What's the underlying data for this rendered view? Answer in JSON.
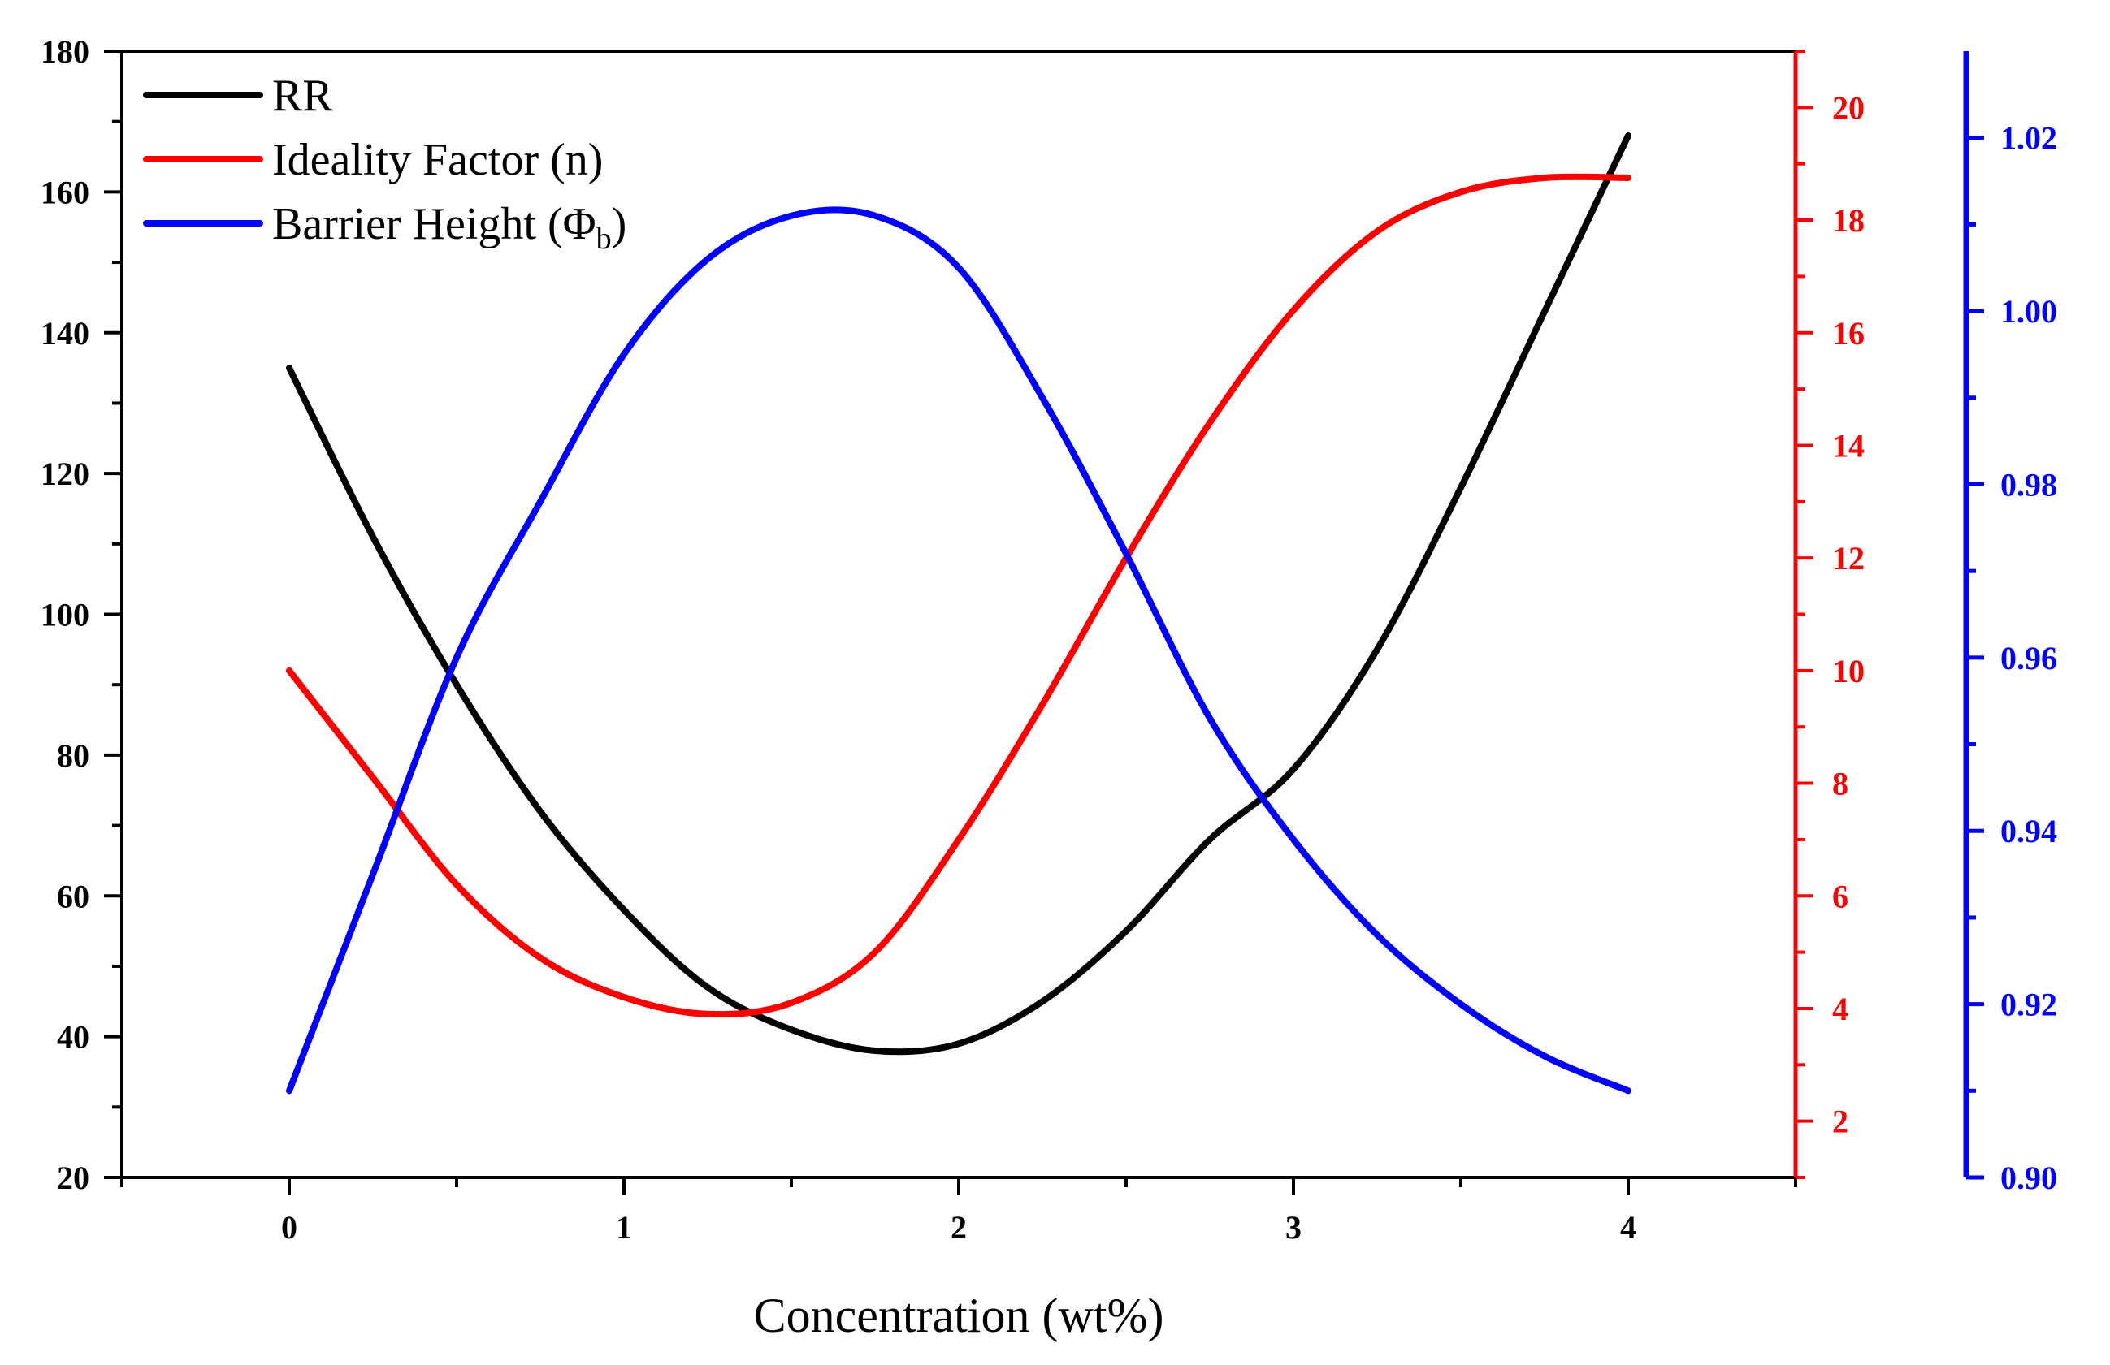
{
  "chart_data": {
    "type": "line",
    "title": "",
    "xlabel": "Concentration (wt%)",
    "xlim": [
      -0.5,
      4.5
    ],
    "x_ticks": [
      0,
      1,
      2,
      3,
      4
    ],
    "x_tick_labels": [
      "0",
      "1",
      "2",
      "3",
      "4"
    ],
    "axes": {
      "left": {
        "ylim": [
          20,
          180
        ],
        "ticks": [
          20,
          40,
          60,
          80,
          100,
          120,
          140,
          160,
          180
        ],
        "tick_labels": [
          "20",
          "40",
          "60",
          "80",
          "100",
          "120",
          "140",
          "160",
          "180"
        ],
        "color": "#000000"
      },
      "right1": {
        "ylim": [
          1,
          21
        ],
        "ticks": [
          2,
          4,
          6,
          8,
          10,
          12,
          14,
          16,
          18,
          20
        ],
        "tick_labels": [
          "2",
          "4",
          "6",
          "8",
          "10",
          "12",
          "14",
          "16",
          "18",
          "20"
        ],
        "color": "#ff0000"
      },
      "right2": {
        "ylim": [
          0.9,
          1.03
        ],
        "ticks": [
          0.9,
          0.92,
          0.94,
          0.96,
          0.98,
          1.0,
          1.02
        ],
        "tick_labels": [
          "0.90",
          "0.92",
          "0.94",
          "0.96",
          "0.98",
          "1.00",
          "1.02"
        ],
        "color": "#0000ff"
      }
    },
    "series": [
      {
        "name": "RR",
        "axis": "left",
        "color": "#000000",
        "x": [
          0,
          0.25,
          0.5,
          0.75,
          1.0,
          1.25,
          1.5,
          1.75,
          2.0,
          2.25,
          2.5,
          2.75,
          3.0,
          3.25,
          3.5,
          3.75,
          4.0
        ],
        "y": [
          135,
          111,
          90,
          72,
          58,
          47,
          41,
          38,
          39,
          45,
          55,
          68,
          78,
          95,
          118,
          143,
          168
        ]
      },
      {
        "name": "Ideality Factor (n)",
        "axis": "right1",
        "color": "#ff0000",
        "x": [
          0,
          0.25,
          0.5,
          0.75,
          1.0,
          1.25,
          1.5,
          1.75,
          2.0,
          2.25,
          2.5,
          2.75,
          3.0,
          3.25,
          3.5,
          3.75,
          4.0
        ],
        "y": [
          10.0,
          8.1,
          6.2,
          4.9,
          4.2,
          3.9,
          4.1,
          5.0,
          7.0,
          9.4,
          12.0,
          14.4,
          16.4,
          17.8,
          18.5,
          18.75,
          18.75
        ]
      },
      {
        "name": "Barrier Height (Φb)",
        "axis": "right2",
        "color": "#0000ff",
        "x": [
          0,
          0.25,
          0.5,
          0.75,
          1.0,
          1.25,
          1.5,
          1.75,
          2.0,
          2.25,
          2.5,
          2.75,
          3.0,
          3.25,
          3.5,
          3.75,
          4.0
        ],
        "y": [
          0.91,
          0.935,
          0.96,
          0.978,
          0.995,
          1.006,
          1.011,
          1.011,
          1.005,
          0.99,
          0.972,
          0.953,
          0.939,
          0.928,
          0.92,
          0.914,
          0.91
        ]
      }
    ],
    "legend": {
      "position": "top-left",
      "entries": [
        {
          "label": "RR",
          "color": "#000000"
        },
        {
          "label": "Ideality Factor (n)",
          "color": "#ff0000"
        },
        {
          "label": "Barrier Height (Φ",
          "subscript": "b",
          "suffix": ")",
          "color": "#0000ff"
        }
      ]
    },
    "grid": false
  }
}
